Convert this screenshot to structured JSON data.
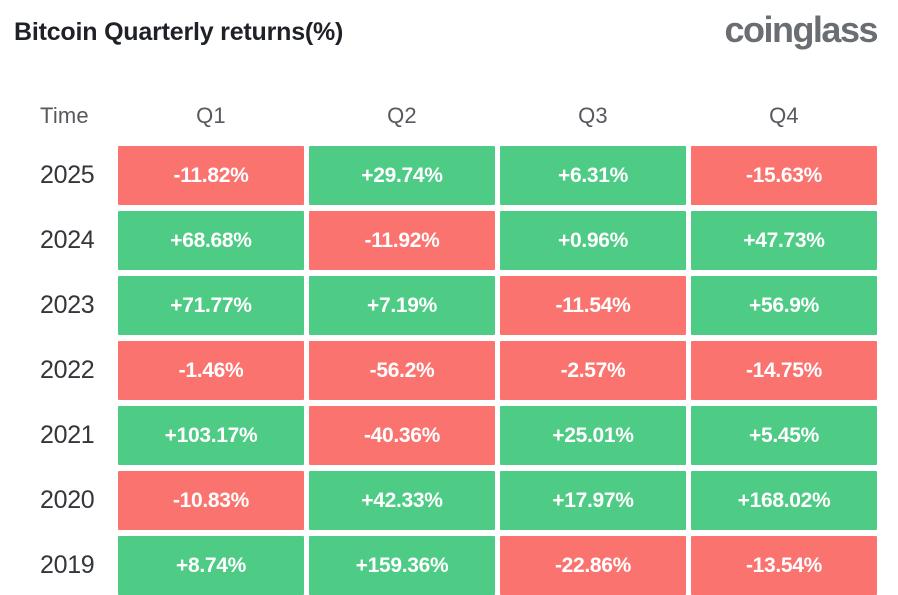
{
  "header": {
    "title": "Bitcoin Quarterly returns(%)",
    "logo": "coinglass"
  },
  "table": {
    "columns": [
      "Time",
      "Q1",
      "Q2",
      "Q3",
      "Q4"
    ],
    "rows": [
      {
        "year": "2025",
        "values": [
          "-11.82%",
          "+29.74%",
          "+6.31%",
          "-15.63%"
        ]
      },
      {
        "year": "2024",
        "values": [
          "+68.68%",
          "-11.92%",
          "+0.96%",
          "+47.73%"
        ]
      },
      {
        "year": "2023",
        "values": [
          "+71.77%",
          "+7.19%",
          "-11.54%",
          "+56.9%"
        ]
      },
      {
        "year": "2022",
        "values": [
          "-1.46%",
          "-56.2%",
          "-2.57%",
          "-14.75%"
        ]
      },
      {
        "year": "2021",
        "values": [
          "+103.17%",
          "-40.36%",
          "+25.01%",
          "+5.45%"
        ]
      },
      {
        "year": "2020",
        "values": [
          "-10.83%",
          "+42.33%",
          "+17.97%",
          "+168.02%"
        ]
      },
      {
        "year": "2019",
        "values": [
          "+8.74%",
          "+159.36%",
          "-22.86%",
          "-13.54%"
        ]
      }
    ]
  },
  "colors": {
    "positive": "#4ECB85",
    "negative": "#FA736F",
    "cell_text": "#FFFFFF",
    "title_text": "#1E2126",
    "logo_text": "#6A6E73",
    "header_text": "#56595E",
    "year_text": "#33363A"
  },
  "chart_data": {
    "type": "heatmap",
    "title": "Bitcoin Quarterly returns(%)",
    "unit": "%",
    "columns": [
      "Q1",
      "Q2",
      "Q3",
      "Q4"
    ],
    "rows": [
      "2025",
      "2024",
      "2023",
      "2022",
      "2021",
      "2020",
      "2019"
    ],
    "values": [
      [
        -11.82,
        29.74,
        6.31,
        -15.63
      ],
      [
        68.68,
        -11.92,
        0.96,
        47.73
      ],
      [
        71.77,
        7.19,
        -11.54,
        56.9
      ],
      [
        -1.46,
        -56.2,
        -2.57,
        -14.75
      ],
      [
        103.17,
        -40.36,
        25.01,
        5.45
      ],
      [
        -10.83,
        42.33,
        17.97,
        168.02
      ],
      [
        8.74,
        159.36,
        -22.86,
        -13.54
      ]
    ],
    "color_coding": "green = positive return, red = negative return",
    "source_brand": "coinglass"
  }
}
